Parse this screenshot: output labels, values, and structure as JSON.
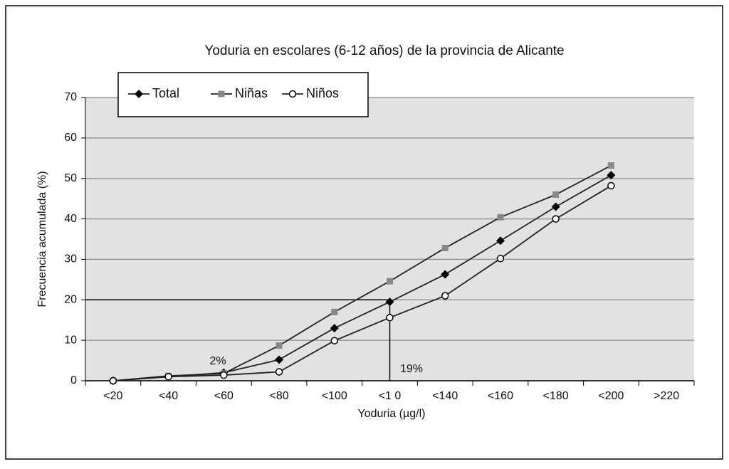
{
  "chart_data": {
    "type": "line",
    "title": "Yoduria en escolares (6-12 años) de la provincia de Alicante",
    "x_label": "Yoduria (µg/l)",
    "y_label": "Frecuencia acumulada (%)",
    "categories": [
      "<20",
      "<40",
      "<60",
      "<80",
      "<100",
      "<1  0",
      "<140",
      "<160",
      "<180",
      "<200",
      ">220"
    ],
    "series": [
      {
        "name": "Total",
        "color": "#000000",
        "marker": "diamond",
        "values": [
          0,
          1,
          2,
          5.2,
          13,
          19.5,
          26.3,
          34.6,
          43,
          50.8,
          null
        ]
      },
      {
        "name": "Niñas",
        "color": "#888888",
        "marker": "square",
        "values": [
          0,
          1.2,
          1.8,
          8.7,
          17,
          24.6,
          32.8,
          40.4,
          46,
          53.2,
          null
        ]
      },
      {
        "name": "Niños",
        "color": "#ffffff",
        "marker": "circle",
        "values": [
          0,
          1,
          1.4,
          2.2,
          9.9,
          15.6,
          21,
          30.2,
          40,
          48.2,
          null
        ]
      }
    ],
    "ylim": [
      0,
      70
    ],
    "yticks": [
      0,
      10,
      20,
      30,
      40,
      50,
      60,
      70
    ],
    "grid": true,
    "reference_y": 20,
    "annotations": [
      {
        "text": "2%"
      },
      {
        "text": "19%"
      }
    ]
  }
}
